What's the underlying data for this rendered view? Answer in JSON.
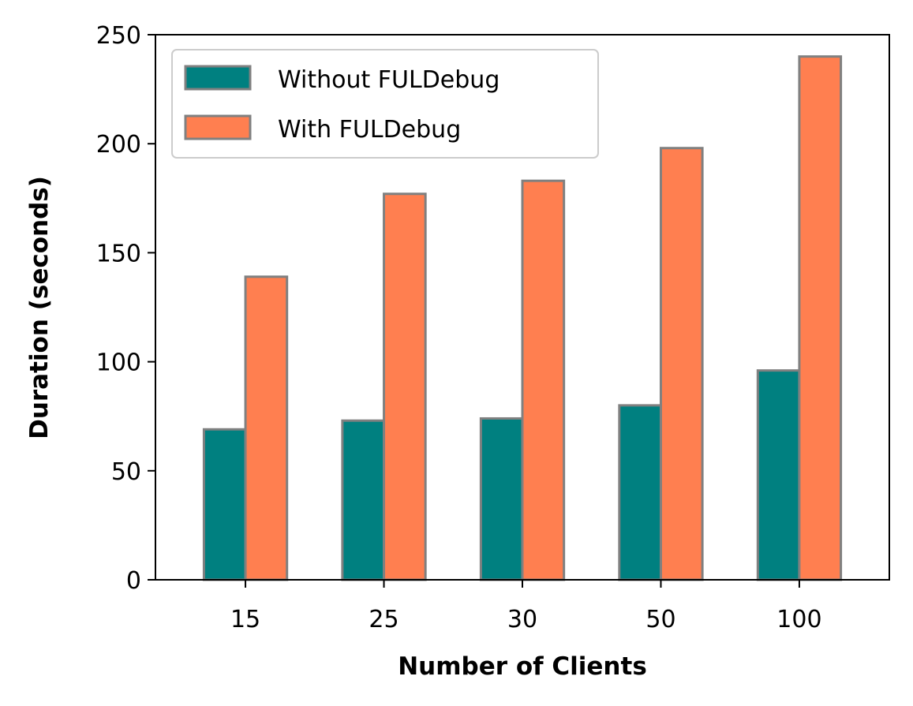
{
  "chart_data": {
    "type": "bar",
    "categories": [
      "15",
      "25",
      "30",
      "50",
      "100"
    ],
    "series": [
      {
        "name": "Without FULDebug",
        "values": [
          69,
          73,
          74,
          80,
          96
        ],
        "color": "#008080"
      },
      {
        "name": "With FULDebug",
        "values": [
          139,
          177,
          183,
          198,
          240
        ],
        "color": "#ff7f50"
      }
    ],
    "bar_edge_color": "#808080",
    "xlabel": "Number of Clients",
    "ylabel": "Duration (seconds)",
    "ylim": [
      0,
      250
    ],
    "yticks": [
      0,
      50,
      100,
      150,
      200,
      250
    ],
    "grid": false,
    "legend_position": "top-left"
  }
}
